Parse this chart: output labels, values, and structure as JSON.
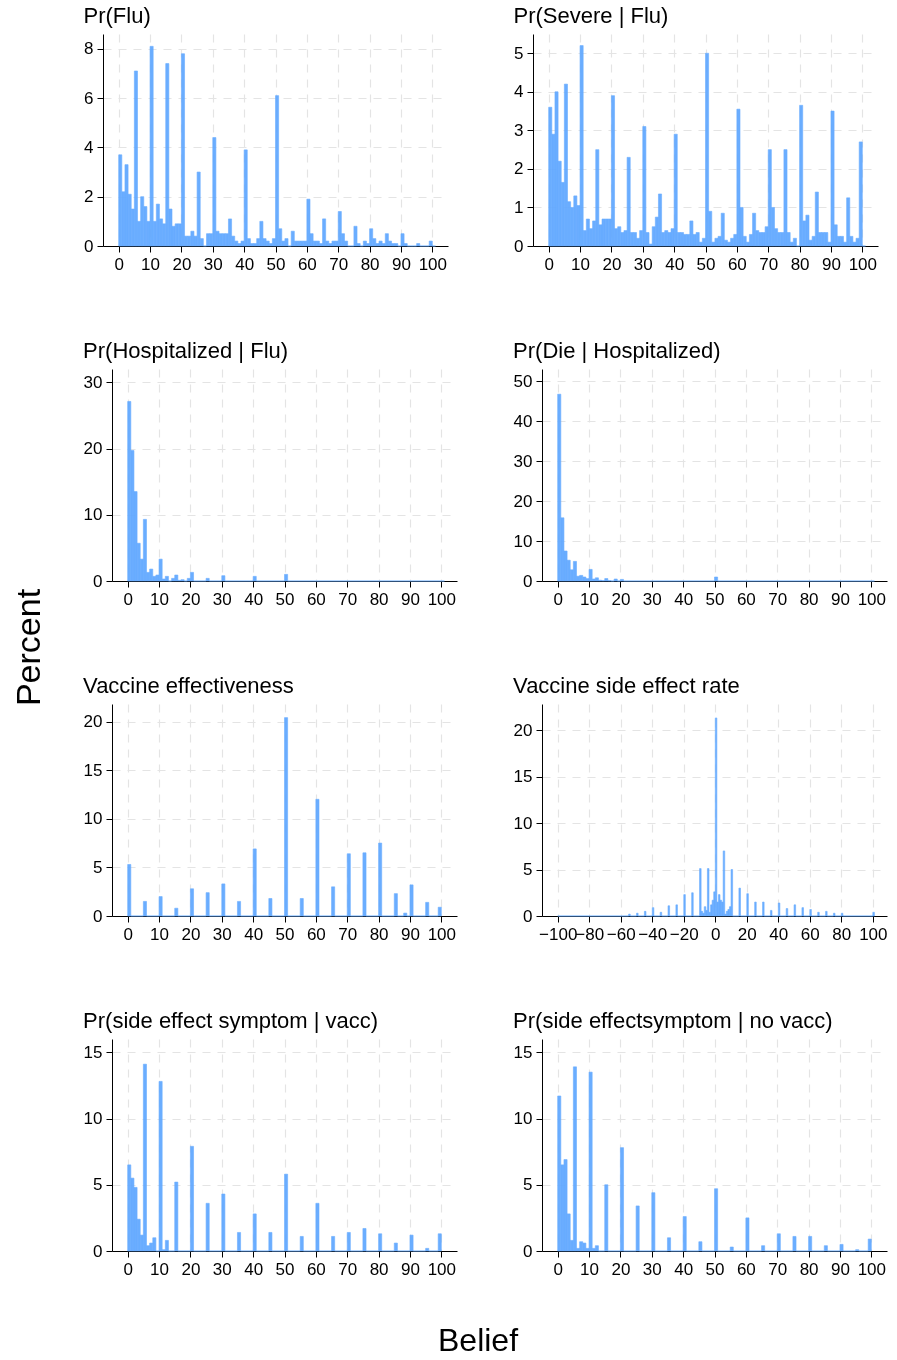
{
  "chart_data": [
    {
      "type": "histogram",
      "title": "Pr(Flu)",
      "color": "#63a9ff",
      "grid": true,
      "xlim": [
        -5,
        105
      ],
      "xticks": [
        0,
        10,
        20,
        30,
        40,
        50,
        60,
        70,
        80,
        90,
        100
      ],
      "ylim": [
        0,
        8.6
      ],
      "yticks": [
        0,
        2,
        4,
        6,
        8
      ],
      "bins": [
        0,
        1,
        2,
        3,
        4,
        5,
        6,
        7,
        8,
        9,
        10,
        11,
        12,
        13,
        14,
        15,
        16,
        17,
        18,
        19,
        20,
        21,
        22,
        23,
        24,
        25,
        26,
        27,
        28,
        29,
        30,
        31,
        32,
        33,
        34,
        35,
        36,
        37,
        38,
        39,
        40,
        41,
        42,
        43,
        44,
        45,
        46,
        47,
        48,
        49,
        50,
        51,
        52,
        53,
        54,
        55,
        56,
        57,
        58,
        59,
        60,
        61,
        62,
        63,
        64,
        65,
        66,
        67,
        68,
        69,
        70,
        71,
        72,
        73,
        74,
        75,
        76,
        77,
        78,
        79,
        80,
        81,
        82,
        83,
        84,
        85,
        86,
        87,
        88,
        89,
        90,
        91,
        92,
        93,
        94,
        95,
        96,
        97,
        98,
        99,
        100,
        101
      ],
      "values": [
        3.7,
        2.2,
        3.3,
        2.1,
        1.5,
        7.1,
        1.0,
        2.0,
        1.6,
        1.0,
        8.1,
        1.0,
        1.7,
        1.1,
        0.9,
        7.4,
        1.5,
        0.8,
        0.9,
        0.9,
        7.8,
        0.4,
        0.4,
        0.6,
        0.4,
        3.0,
        0.3,
        0,
        0.5,
        0.5,
        4.4,
        0.6,
        0.5,
        0.5,
        0.5,
        1.1,
        0.4,
        0.2,
        0.1,
        0.2,
        3.9,
        0.3,
        0.1,
        0.1,
        0.3,
        1.0,
        0.3,
        0.2,
        0.1,
        0.3,
        6.1,
        0.7,
        0.2,
        0.3,
        0,
        0.6,
        0.2,
        0.2,
        0.2,
        0.2,
        1.9,
        0.5,
        0.2,
        0.2,
        0.1,
        1.1,
        0.2,
        0.1,
        0.2,
        0.2,
        1.4,
        0.5,
        0.2,
        0,
        0,
        0.8,
        0.1,
        0,
        0.2,
        0.1,
        0.7,
        0.3,
        0.1,
        0.2,
        0.1,
        0.5,
        0.2,
        0.1,
        0.1,
        0,
        0.5,
        0.1,
        0,
        0,
        0,
        0.1,
        0,
        0,
        0,
        0.2,
        0
      ]
    },
    {
      "type": "histogram",
      "title": "Pr(Severe | Flu)",
      "color": "#63a9ff",
      "grid": true,
      "xlim": [
        -5,
        105
      ],
      "xticks": [
        0,
        10,
        20,
        30,
        40,
        50,
        60,
        70,
        80,
        90,
        100
      ],
      "ylim": [
        0,
        5.5
      ],
      "yticks": [
        0,
        1,
        2,
        3,
        4,
        5
      ],
      "bins": [
        0,
        1,
        2,
        3,
        4,
        5,
        6,
        7,
        8,
        9,
        10,
        11,
        12,
        13,
        14,
        15,
        16,
        17,
        18,
        19,
        20,
        21,
        22,
        23,
        24,
        25,
        26,
        27,
        28,
        29,
        30,
        31,
        32,
        33,
        34,
        35,
        36,
        37,
        38,
        39,
        40,
        41,
        42,
        43,
        44,
        45,
        46,
        47,
        48,
        49,
        50,
        51,
        52,
        53,
        54,
        55,
        56,
        57,
        58,
        59,
        60,
        61,
        62,
        63,
        64,
        65,
        66,
        67,
        68,
        69,
        70,
        71,
        72,
        73,
        74,
        75,
        76,
        77,
        78,
        79,
        80,
        81,
        82,
        83,
        84,
        85,
        86,
        87,
        88,
        89,
        90,
        91,
        92,
        93,
        94,
        95,
        96,
        97,
        98,
        99,
        100,
        101
      ],
      "values": [
        3.6,
        2.9,
        4.0,
        2.2,
        1.65,
        4.2,
        1.15,
        1.0,
        1.3,
        1.05,
        5.2,
        0.4,
        0.7,
        0.45,
        0.65,
        2.5,
        0.55,
        0.7,
        0.7,
        0.7,
        3.9,
        0.45,
        0.5,
        0.35,
        0.4,
        2.3,
        0.35,
        0.35,
        0.2,
        0.4,
        3.1,
        0.35,
        0.05,
        0.5,
        0.75,
        1.35,
        0.35,
        0.4,
        0.35,
        0.45,
        2.9,
        0.35,
        0.35,
        0.3,
        0.3,
        0.65,
        0.3,
        0.35,
        0.1,
        0.2,
        5.0,
        0.9,
        0.1,
        0.2,
        0.25,
        0.85,
        0.15,
        0.1,
        0.2,
        0.3,
        3.55,
        1.0,
        0.25,
        0.1,
        0.3,
        0.85,
        0.4,
        0.35,
        0.35,
        0.5,
        2.5,
        1.0,
        0.45,
        0.35,
        0.35,
        2.5,
        0.35,
        0.1,
        0.2,
        0,
        3.65,
        0.65,
        0.8,
        0.15,
        0.25,
        1.4,
        0.35,
        0.35,
        0.35,
        0.1,
        3.5,
        0.55,
        0.25,
        0.25,
        0.1,
        1.25,
        0.25,
        0.1,
        0.2,
        2.7,
        0
      ]
    },
    {
      "type": "histogram",
      "title": "Pr(Hospitalized | Flu)",
      "color": "#63a9ff",
      "grid": true,
      "xlim": [
        -5,
        105
      ],
      "xticks": [
        0,
        10,
        20,
        30,
        40,
        50,
        60,
        70,
        80,
        90,
        100
      ],
      "ylim": [
        0,
        32
      ],
      "yticks": [
        0,
        10,
        20,
        30
      ],
      "bins": [
        0,
        1,
        2,
        3,
        4,
        5,
        6,
        7,
        8,
        9,
        10,
        11,
        12,
        13,
        14,
        15,
        16,
        17,
        18,
        19,
        20,
        21,
        25,
        26,
        30,
        31,
        40,
        41,
        50,
        51,
        101
      ],
      "values": [
        27.1,
        19.7,
        13.5,
        5.7,
        3.3,
        9.3,
        1.3,
        1.8,
        0.7,
        0.9,
        3.3,
        0.3,
        0.7,
        0,
        0.4,
        0.9,
        0.1,
        0.2,
        0,
        0.4,
        1.3,
        0,
        0.4,
        0,
        0.8,
        0,
        0.7,
        0,
        1.0,
        0
      ]
    },
    {
      "type": "histogram",
      "title": "Pr(Die | Hospitalized)",
      "color": "#63a9ff",
      "grid": true,
      "xlim": [
        -5,
        105
      ],
      "xticks": [
        0,
        10,
        20,
        30,
        40,
        50,
        60,
        70,
        80,
        90,
        100
      ],
      "ylim": [
        0,
        53
      ],
      "yticks": [
        0,
        10,
        20,
        30,
        40,
        50
      ],
      "bins": [
        0,
        1,
        2,
        3,
        4,
        5,
        6,
        7,
        8,
        9,
        10,
        11,
        12,
        13,
        14,
        15,
        16,
        17,
        18,
        19,
        20,
        21,
        50,
        51,
        101
      ],
      "values": [
        46.7,
        15.8,
        7.5,
        5.2,
        2.8,
        4.9,
        1.2,
        1.4,
        1.0,
        0.6,
        2.9,
        0.5,
        0.8,
        0.2,
        0.1,
        0.6,
        0.1,
        0,
        0.5,
        0,
        0.4,
        0,
        1.0,
        0
      ]
    },
    {
      "type": "histogram",
      "title": "Vaccine effectiveness",
      "ylabel": "Percent",
      "color": "#63a9ff",
      "grid": true,
      "xlim": [
        -5,
        105
      ],
      "xticks": [
        0,
        10,
        20,
        30,
        40,
        50,
        60,
        70,
        80,
        90,
        100
      ],
      "ylim": [
        0,
        21.8
      ],
      "yticks": [
        0,
        5,
        10,
        15,
        20
      ],
      "bins": [
        0,
        1,
        5,
        6,
        10,
        11,
        15,
        16,
        20,
        21,
        25,
        26,
        30,
        31,
        35,
        36,
        40,
        41,
        45,
        46,
        50,
        51,
        55,
        56,
        60,
        61,
        65,
        66,
        70,
        71,
        75,
        76,
        80,
        81,
        85,
        86,
        88,
        89,
        90,
        91,
        95,
        96,
        99,
        100
      ],
      "values": [
        5.3,
        0,
        1.5,
        0,
        2.0,
        0,
        0.8,
        0,
        2.8,
        0,
        2.4,
        0,
        3.3,
        0,
        1.5,
        0,
        6.9,
        0,
        1.8,
        0,
        20.4,
        0,
        1.8,
        0,
        12.0,
        0,
        3.0,
        0,
        6.4,
        0,
        6.5,
        0,
        7.5,
        0,
        2.3,
        0,
        0.3,
        0,
        3.2,
        0,
        1.4,
        0,
        0.9
      ]
    },
    {
      "type": "histogram",
      "title": "Vaccine side effect rate",
      "color": "#63a9ff",
      "grid": true,
      "xlim": [
        -110,
        109
      ],
      "xticks": [
        -100,
        -80,
        -60,
        -40,
        -20,
        0,
        20,
        40,
        60,
        80,
        100
      ],
      "ylim": [
        0,
        22.8
      ],
      "yticks": [
        0,
        5,
        10,
        15,
        20
      ],
      "bins": [
        -100,
        -55,
        -54,
        -50,
        -49,
        -45,
        -44,
        -40,
        -39,
        -35,
        -34,
        -30,
        -29,
        -25,
        -24,
        -20,
        -19,
        -15,
        -14,
        -10,
        -9,
        -8,
        -7,
        -6,
        -5,
        -4,
        -3,
        -2,
        -1,
        0,
        1,
        2,
        3,
        4,
        5,
        6,
        7,
        8,
        9,
        10,
        11,
        15,
        16,
        20,
        21,
        25,
        26,
        30,
        31,
        35,
        36,
        40,
        41,
        45,
        46,
        50,
        51,
        55,
        56,
        60,
        61,
        65,
        66,
        70,
        71,
        75,
        76,
        80,
        81,
        100,
        101
      ],
      "values": [
        0,
        0.2,
        0,
        0.3,
        0,
        0.5,
        0,
        0.9,
        0,
        0.4,
        0,
        1.1,
        0,
        1.2,
        0,
        2.3,
        0,
        2.5,
        0,
        5.1,
        0.5,
        0.3,
        1.0,
        0.6,
        5.1,
        0.4,
        1.2,
        1.7,
        2.6,
        21.3,
        1.5,
        2.3,
        1.7,
        1.5,
        7.0,
        0.2,
        0.5,
        0.7,
        1.0,
        5.0,
        0,
        3.0,
        0,
        2.4,
        0,
        1.5,
        0,
        1.5,
        0,
        0.6,
        0,
        1.4,
        0,
        0.8,
        0,
        1.2,
        0,
        0.9,
        0,
        0.7,
        0,
        0.4,
        0,
        0.5,
        0,
        0.3,
        0,
        0.3,
        0,
        0.4
      ]
    },
    {
      "type": "histogram",
      "title": "Pr(side effect symptom | vacc)",
      "xlabel": "Belief",
      "color": "#63a9ff",
      "grid": true,
      "xlim": [
        -5,
        105
      ],
      "xticks": [
        0,
        10,
        20,
        30,
        40,
        50,
        60,
        70,
        80,
        90,
        100
      ],
      "ylim": [
        0,
        16
      ],
      "yticks": [
        0,
        5,
        10,
        15
      ],
      "bins": [
        0,
        1,
        2,
        3,
        4,
        5,
        6,
        7,
        8,
        9,
        10,
        11,
        12,
        13,
        15,
        16,
        20,
        21,
        25,
        26,
        30,
        31,
        35,
        36,
        40,
        41,
        45,
        46,
        50,
        51,
        55,
        56,
        60,
        61,
        65,
        66,
        70,
        71,
        75,
        76,
        80,
        81,
        85,
        86,
        90,
        91,
        95,
        96,
        99,
        100
      ],
      "values": [
        6.5,
        5.5,
        4.8,
        2.4,
        1.2,
        14.1,
        0.4,
        0.6,
        1.0,
        0,
        12.8,
        0.1,
        0.8,
        0,
        5.2,
        0,
        7.9,
        0,
        3.6,
        0,
        4.3,
        0,
        1.4,
        0,
        2.8,
        0,
        1.4,
        0,
        5.8,
        0,
        1.1,
        0,
        3.6,
        0,
        1.1,
        0,
        1.4,
        0,
        1.7,
        0,
        1.3,
        0,
        0.6,
        0,
        1.2,
        0,
        0.2,
        0,
        1.3
      ]
    },
    {
      "type": "histogram",
      "title": "Pr(side effectsymptom  | no vacc)",
      "color": "#63a9ff",
      "grid": true,
      "xlim": [
        -5,
        105
      ],
      "xticks": [
        0,
        10,
        20,
        30,
        40,
        50,
        60,
        70,
        80,
        90,
        100
      ],
      "ylim": [
        0,
        16
      ],
      "yticks": [
        0,
        5,
        10,
        15
      ],
      "bins": [
        0,
        1,
        2,
        3,
        4,
        5,
        6,
        7,
        8,
        9,
        10,
        11,
        12,
        13,
        15,
        16,
        20,
        21,
        25,
        26,
        30,
        31,
        35,
        36,
        40,
        41,
        45,
        46,
        50,
        51,
        55,
        56,
        60,
        61,
        65,
        66,
        70,
        71,
        75,
        76,
        80,
        81,
        85,
        86,
        90,
        91,
        95,
        96,
        99,
        100
      ],
      "values": [
        11.7,
        6.5,
        6.9,
        2.8,
        0.8,
        13.9,
        0.2,
        0.7,
        0.6,
        0.2,
        13.5,
        0.2,
        0.4,
        0,
        5.0,
        0,
        7.8,
        0,
        3.4,
        0,
        4.4,
        0,
        1.0,
        0,
        2.6,
        0,
        0.7,
        0,
        4.7,
        0,
        0.3,
        0,
        2.5,
        0,
        0.4,
        0,
        1.3,
        0,
        1.1,
        0,
        1.1,
        0,
        0.4,
        0,
        0.5,
        0,
        0.1,
        0,
        0.9
      ]
    }
  ]
}
